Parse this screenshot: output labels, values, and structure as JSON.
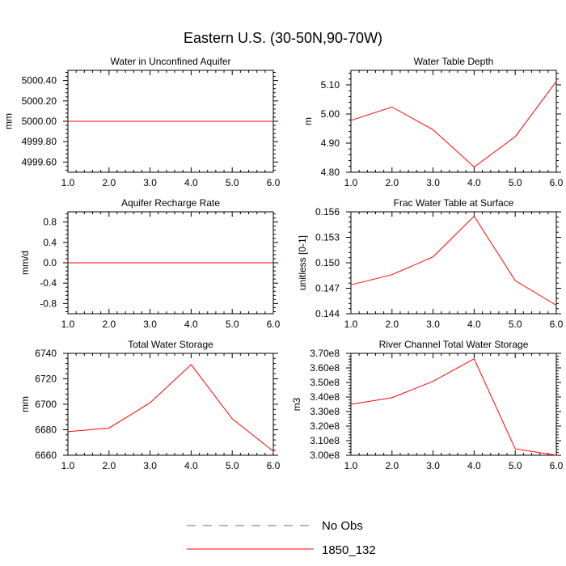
{
  "main_title": "Eastern U.S. (30-50N,90-70W)",
  "colors": {
    "obs": "#6666cc",
    "model": "#ff0000",
    "axis": "#000000"
  },
  "legend": [
    {
      "label": "No Obs",
      "style": "dashed",
      "color": "#6666cc"
    },
    {
      "label": "1850_132",
      "style": "solid",
      "color": "#ff0000"
    }
  ],
  "chart_data": [
    {
      "type": "line",
      "title": "Water in Unconfined Aquifer",
      "ylabel": "mm",
      "x": [
        1,
        2,
        3,
        4,
        5,
        6
      ],
      "xlim": [
        1,
        6
      ],
      "xticks": [
        "1.0",
        "2.0",
        "3.0",
        "4.0",
        "5.0",
        "6.0"
      ],
      "ylim": [
        4999.5,
        5000.5
      ],
      "yticks": [
        4999.6,
        4999.8,
        5000.0,
        5000.2,
        5000.4
      ],
      "ytick_labels": [
        "4999.60",
        "4999.80",
        "5000.00",
        "5000.20",
        "5000.40"
      ],
      "series": [
        {
          "name": "1850_132",
          "values": [
            5000.0,
            5000.0,
            5000.0,
            5000.0,
            5000.0,
            5000.0
          ]
        }
      ]
    },
    {
      "type": "line",
      "title": "Water Table Depth",
      "ylabel": "m",
      "x": [
        1,
        2,
        3,
        4,
        5,
        6
      ],
      "xlim": [
        1,
        6
      ],
      "xticks": [
        "1.0",
        "2.0",
        "3.0",
        "4.0",
        "5.0",
        "6.0"
      ],
      "ylim": [
        4.8,
        5.15
      ],
      "yticks": [
        4.8,
        4.9,
        5.0,
        5.1
      ],
      "ytick_labels": [
        "4.80",
        "4.90",
        "5.00",
        "5.10"
      ],
      "series": [
        {
          "name": "1850_132",
          "values": [
            4.978,
            5.024,
            4.946,
            4.818,
            4.922,
            5.112
          ]
        }
      ]
    },
    {
      "type": "line",
      "title": "Aquifer Recharge Rate",
      "ylabel": "mm/d",
      "x": [
        1,
        2,
        3,
        4,
        5,
        6
      ],
      "xlim": [
        1,
        6
      ],
      "xticks": [
        "1.0",
        "2.0",
        "3.0",
        "4.0",
        "5.0",
        "6.0"
      ],
      "ylim": [
        -1.0,
        1.0
      ],
      "yticks": [
        -0.8,
        -0.4,
        0.0,
        0.4,
        0.8
      ],
      "ytick_labels": [
        "-0.8",
        "-0.4",
        "0.0",
        "0.4",
        "0.8"
      ],
      "series": [
        {
          "name": "1850_132",
          "values": [
            0.0,
            0.0,
            0.0,
            0.0,
            0.0,
            0.0
          ]
        }
      ]
    },
    {
      "type": "line",
      "title": "Frac Water Table at Surface",
      "ylabel": "unitless [0-1]",
      "x": [
        1,
        2,
        3,
        4,
        5,
        6
      ],
      "xlim": [
        1,
        6
      ],
      "xticks": [
        "1.0",
        "2.0",
        "3.0",
        "4.0",
        "5.0",
        "6.0"
      ],
      "ylim": [
        0.144,
        0.156
      ],
      "yticks": [
        0.144,
        0.147,
        0.15,
        0.153,
        0.156
      ],
      "ytick_labels": [
        "0.144",
        "0.147",
        "0.150",
        "0.153",
        "0.156"
      ],
      "series": [
        {
          "name": "1850_132",
          "values": [
            0.1474,
            0.1486,
            0.1507,
            0.1555,
            0.1479,
            0.145
          ]
        }
      ]
    },
    {
      "type": "line",
      "title": "Total Water Storage",
      "ylabel": "mm",
      "x": [
        1,
        2,
        3,
        4,
        5,
        6
      ],
      "xlim": [
        1,
        6
      ],
      "xticks": [
        "1.0",
        "2.0",
        "3.0",
        "4.0",
        "5.0",
        "6.0"
      ],
      "ylim": [
        6660,
        6740
      ],
      "yticks": [
        6660,
        6680,
        6700,
        6720,
        6740
      ],
      "ytick_labels": [
        "6660",
        "6680",
        "6700",
        "6720",
        "6740"
      ],
      "series": [
        {
          "name": "1850_132",
          "values": [
            6678.5,
            6681.3,
            6701.2,
            6731.1,
            6688.6,
            6663.2
          ]
        }
      ]
    },
    {
      "type": "line",
      "title": "River Channel Total Water Storage",
      "ylabel": "m3",
      "x": [
        1,
        2,
        3,
        4,
        5,
        6
      ],
      "xlim": [
        1,
        6
      ],
      "xticks": [
        "1.0",
        "2.0",
        "3.0",
        "4.0",
        "5.0",
        "6.0"
      ],
      "ylim": [
        300000000,
        370000000
      ],
      "yticks": [
        300000000,
        310000000,
        320000000,
        330000000,
        340000000,
        350000000,
        360000000,
        370000000
      ],
      "ytick_labels": [
        "3.00e8",
        "3.10e8",
        "3.20e8",
        "3.30e8",
        "3.40e8",
        "3.50e8",
        "3.60e8",
        "3.70e8"
      ],
      "series": [
        {
          "name": "1850_132",
          "values": [
            335000000,
            339500000,
            350800000,
            366200000,
            304400000,
            300000000
          ]
        }
      ]
    }
  ]
}
